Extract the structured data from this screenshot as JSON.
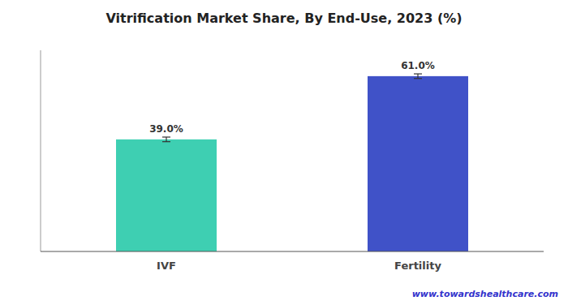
{
  "chart_data": {
    "type": "bar",
    "title": "Vitrification Market Share, By End-Use, 2023 (%)",
    "categories": [
      "IVF",
      "Fertility"
    ],
    "values": [
      39.0,
      61.0
    ],
    "errors": [
      0.8,
      0.8
    ],
    "value_labels": [
      "39.0%",
      "61.0%"
    ],
    "data_labels": true,
    "colors": [
      "#3ECFB2",
      "#4052C8"
    ],
    "ylim": [
      0,
      70
    ],
    "tick_labels": "x",
    "grid": false,
    "annotations": [
      "www.towardshealthcare.com"
    ]
  }
}
